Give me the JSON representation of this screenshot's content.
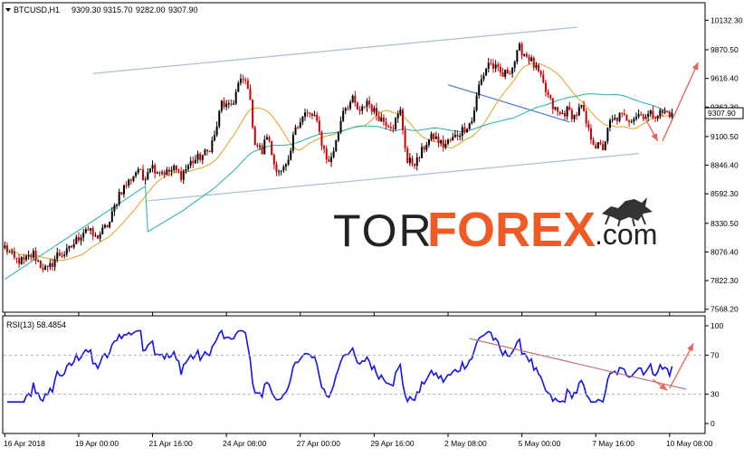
{
  "chart_data": {
    "type": "candlestick",
    "symbol_header": {
      "symbol": "BTCUSD,H1",
      "open": "9309.30",
      "high": "9315.70",
      "low": "9282.00",
      "close": "9307.90"
    },
    "price_axis": {
      "ticks": [
        10132.3,
        9870.5,
        9616.4,
        9362.3,
        9100.5,
        8846.4,
        8592.3,
        8330.5,
        8076.4,
        7822.3,
        7568.2
      ],
      "tick_labels": [
        "10132.30",
        "9870.50",
        "9616.40",
        "9362.30",
        "9100.50",
        "8846.40",
        "8592.30",
        "8330.50",
        "8076.40",
        "7822.30",
        "7568.20"
      ],
      "range": [
        7550,
        10280
      ],
      "current_price": 9307.9,
      "current_price_label": "9307.90"
    },
    "time_axis": {
      "labels": [
        "16 Apr 2018",
        "19 Apr 00:00",
        "21 Apr 16:00",
        "24 Apr 08:00",
        "27 Apr 00:00",
        "29 Apr 16:00",
        "2 May 08:00",
        "5 May 00:00",
        "7 May 16:00",
        "10 May 08:00"
      ],
      "label_bar_index": [
        0,
        31,
        62,
        93,
        124,
        155,
        186,
        217,
        248,
        279
      ],
      "bar_count": 294
    },
    "close_anchors": [
      [
        0,
        8120
      ],
      [
        4,
        8010
      ],
      [
        8,
        7990
      ],
      [
        12,
        8060
      ],
      [
        15,
        7960
      ],
      [
        18,
        7910
      ],
      [
        22,
        8050
      ],
      [
        26,
        8070
      ],
      [
        30,
        8180
      ],
      [
        34,
        8290
      ],
      [
        38,
        8200
      ],
      [
        41,
        8260
      ],
      [
        44,
        8340
      ],
      [
        48,
        8600
      ],
      [
        52,
        8700
      ],
      [
        56,
        8820
      ],
      [
        58,
        8720
      ],
      [
        61,
        8850
      ],
      [
        64,
        8800
      ],
      [
        68,
        8780
      ],
      [
        71,
        8810
      ],
      [
        74,
        8760
      ],
      [
        78,
        8870
      ],
      [
        82,
        8920
      ],
      [
        85,
        8960
      ],
      [
        88,
        9100
      ],
      [
        91,
        9400
      ],
      [
        94,
        9350
      ],
      [
        96,
        9420
      ],
      [
        98,
        9560
      ],
      [
        100,
        9600
      ],
      [
        102,
        9560
      ],
      [
        105,
        9050
      ],
      [
        108,
        8960
      ],
      [
        110,
        9120
      ],
      [
        113,
        8860
      ],
      [
        116,
        8780
      ],
      [
        119,
        8850
      ],
      [
        122,
        9200
      ],
      [
        126,
        9300
      ],
      [
        130,
        9280
      ],
      [
        133,
        9050
      ],
      [
        136,
        8860
      ],
      [
        139,
        9050
      ],
      [
        142,
        9350
      ],
      [
        146,
        9420
      ],
      [
        149,
        9300
      ],
      [
        152,
        9420
      ],
      [
        155,
        9320
      ],
      [
        159,
        9240
      ],
      [
        163,
        9200
      ],
      [
        166,
        9320
      ],
      [
        169,
        8870
      ],
      [
        173,
        8880
      ],
      [
        177,
        9050
      ],
      [
        180,
        9100
      ],
      [
        184,
        9020
      ],
      [
        188,
        9080
      ],
      [
        192,
        9160
      ],
      [
        196,
        9240
      ],
      [
        199,
        9550
      ],
      [
        203,
        9760
      ],
      [
        206,
        9700
      ],
      [
        209,
        9640
      ],
      [
        213,
        9720
      ],
      [
        216,
        9880
      ],
      [
        220,
        9800
      ],
      [
        224,
        9660
      ],
      [
        227,
        9500
      ],
      [
        230,
        9360
      ],
      [
        233,
        9290
      ],
      [
        236,
        9330
      ],
      [
        239,
        9280
      ],
      [
        242,
        9360
      ],
      [
        245,
        9140
      ],
      [
        248,
        9020
      ],
      [
        251,
        9000
      ],
      [
        254,
        9220
      ],
      [
        258,
        9280
      ],
      [
        262,
        9260
      ],
      [
        266,
        9300
      ],
      [
        270,
        9290
      ],
      [
        275,
        9310
      ],
      [
        280,
        9307.9
      ]
    ],
    "indicators": [
      {
        "name": "MA fast",
        "period": 20,
        "color": "#e6a020"
      },
      {
        "name": "MA slow",
        "period": 60,
        "color": "#20b2aa"
      }
    ],
    "rsi": {
      "label": "RSI(13) 58.4854",
      "ticks": [
        100,
        70,
        30,
        0
      ],
      "tick_labels": [
        "100",
        "70",
        "30",
        "0"
      ],
      "levels": [
        70,
        30
      ],
      "color": "#1414e6"
    },
    "drawings": {
      "channel_color": "#a8bcd8",
      "trendline_color": "#4a7ad4",
      "rsi_trendline_color": "#c07070",
      "arrow_color": "#f06050"
    },
    "watermark": "TORFOREX.com",
    "colors": {
      "bull_candle": "#000000",
      "bear_candle": "#cc0000",
      "grid": "#c8c8c8",
      "price_tag_bg": "#ffffff"
    }
  }
}
